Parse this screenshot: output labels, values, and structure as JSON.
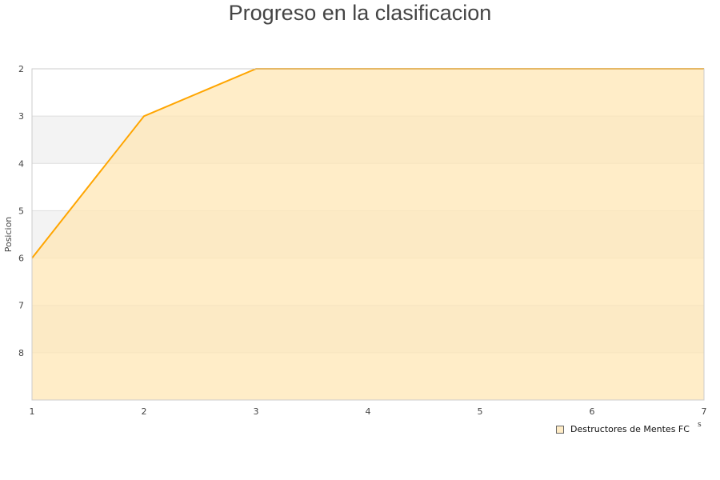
{
  "chart_data": {
    "type": "area",
    "title": "Progreso en la clasificacion",
    "ylabel": "Posicion",
    "xlabel_fragment": "s",
    "x": [
      1,
      2,
      3,
      4,
      5,
      6,
      7
    ],
    "series": [
      {
        "name": "Destructores de Mentes FC",
        "values": [
          6,
          3,
          2,
          2,
          2,
          2,
          2
        ]
      }
    ],
    "xlim": [
      1,
      7
    ],
    "ylim": [
      2,
      9
    ],
    "y_inverted": true,
    "y_ticks": [
      2,
      3,
      4,
      5,
      6,
      7,
      8
    ],
    "x_ticks": [
      1,
      2,
      3,
      4,
      5,
      6,
      7
    ],
    "grid": "alternating horizontal bands",
    "legend_position": "bottom-right",
    "colors": {
      "line": "#ffa500",
      "fill": "#ffe7b5",
      "band": "#f3f3f3"
    }
  }
}
